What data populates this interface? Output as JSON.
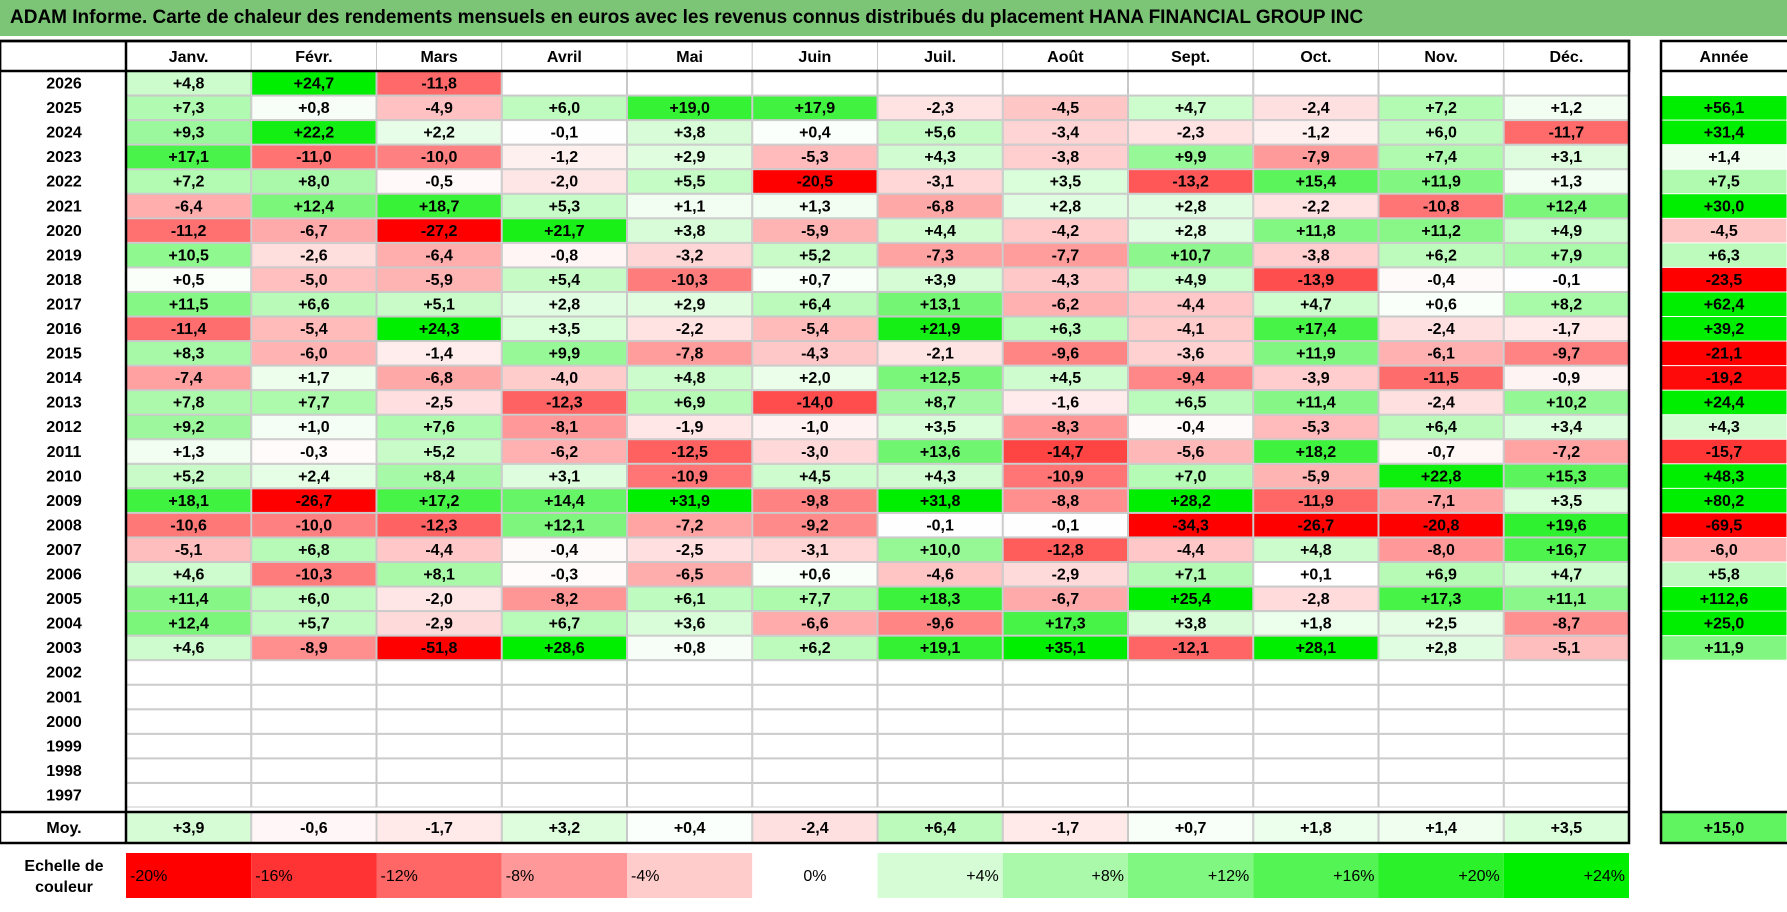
{
  "title": "ADAM Informe. Carte de chaleur des rendements mensuels en euros avec les revenus connus distribués du placement HANA FINANCIAL GROUP INC",
  "colors": {
    "negative_max": "#ff0000",
    "neutral": "#ffffff",
    "positive_max": "#00ee00",
    "title_bar": "#7cc576"
  },
  "chart_data": {
    "type": "heatmap",
    "months": [
      "Janv.",
      "Févr.",
      "Mars",
      "Avril",
      "Mai",
      "Juin",
      "Juil.",
      "Août",
      "Sept.",
      "Oct.",
      "Nov.",
      "Déc."
    ],
    "year_column_label": "Année",
    "rows": [
      {
        "year": "2026",
        "values": [
          "+4,8",
          "+24,7",
          "-11,8",
          null,
          null,
          null,
          null,
          null,
          null,
          null,
          null,
          null
        ],
        "annual": null
      },
      {
        "year": "2025",
        "values": [
          "+7,3",
          "+0,8",
          "-4,9",
          "+6,0",
          "+19,0",
          "+17,9",
          "-2,3",
          "-4,5",
          "+4,7",
          "-2,4",
          "+7,2",
          "+1,2"
        ],
        "annual": "+56,1"
      },
      {
        "year": "2024",
        "values": [
          "+9,3",
          "+22,2",
          "+2,2",
          "-0,1",
          "+3,8",
          "+0,4",
          "+5,6",
          "-3,4",
          "-2,3",
          "-1,2",
          "+6,0",
          "-11,7"
        ],
        "annual": "+31,4"
      },
      {
        "year": "2023",
        "values": [
          "+17,1",
          "-11,0",
          "-10,0",
          "-1,2",
          "+2,9",
          "-5,3",
          "+4,3",
          "-3,8",
          "+9,9",
          "-7,9",
          "+7,4",
          "+3,1"
        ],
        "annual": "+1,4"
      },
      {
        "year": "2022",
        "values": [
          "+7,2",
          "+8,0",
          "-0,5",
          "-2,0",
          "+5,5",
          "-20,5",
          "-3,1",
          "+3,5",
          "-13,2",
          "+15,4",
          "+11,9",
          "+1,3"
        ],
        "annual": "+7,5"
      },
      {
        "year": "2021",
        "values": [
          "-6,4",
          "+12,4",
          "+18,7",
          "+5,3",
          "+1,1",
          "+1,3",
          "-6,8",
          "+2,8",
          "+2,8",
          "-2,2",
          "-10,8",
          "+12,4"
        ],
        "annual": "+30,0"
      },
      {
        "year": "2020",
        "values": [
          "-11,2",
          "-6,7",
          "-27,2",
          "+21,7",
          "+3,8",
          "-5,9",
          "+4,4",
          "-4,2",
          "+2,8",
          "+11,8",
          "+11,2",
          "+4,9"
        ],
        "annual": "-4,5"
      },
      {
        "year": "2019",
        "values": [
          "+10,5",
          "-2,6",
          "-6,4",
          "-0,8",
          "-3,2",
          "+5,2",
          "-7,3",
          "-7,7",
          "+10,7",
          "-3,8",
          "+6,2",
          "+7,9"
        ],
        "annual": "+6,3"
      },
      {
        "year": "2018",
        "values": [
          "+0,5",
          "-5,0",
          "-5,9",
          "+5,4",
          "-10,3",
          "+0,7",
          "+3,9",
          "-4,3",
          "+4,9",
          "-13,9",
          "-0,4",
          "-0,1"
        ],
        "annual": "-23,5"
      },
      {
        "year": "2017",
        "values": [
          "+11,5",
          "+6,6",
          "+5,1",
          "+2,8",
          "+2,9",
          "+6,4",
          "+13,1",
          "-6,2",
          "-4,4",
          "+4,7",
          "+0,6",
          "+8,2"
        ],
        "annual": "+62,4"
      },
      {
        "year": "2016",
        "values": [
          "-11,4",
          "-5,4",
          "+24,3",
          "+3,5",
          "-2,2",
          "-5,4",
          "+21,9",
          "+6,3",
          "-4,1",
          "+17,4",
          "-2,4",
          "-1,7"
        ],
        "annual": "+39,2"
      },
      {
        "year": "2015",
        "values": [
          "+8,3",
          "-6,0",
          "-1,4",
          "+9,9",
          "-7,8",
          "-4,3",
          "-2,1",
          "-9,6",
          "-3,6",
          "+11,9",
          "-6,1",
          "-9,7"
        ],
        "annual": "-21,1"
      },
      {
        "year": "2014",
        "values": [
          "-7,4",
          "+1,7",
          "-6,8",
          "-4,0",
          "+4,8",
          "+2,0",
          "+12,5",
          "+4,5",
          "-9,4",
          "-3,9",
          "-11,5",
          "-0,9"
        ],
        "annual": "-19,2"
      },
      {
        "year": "2013",
        "values": [
          "+7,8",
          "+7,7",
          "-2,5",
          "-12,3",
          "+6,9",
          "-14,0",
          "+8,7",
          "-1,6",
          "+6,5",
          "+11,4",
          "-2,4",
          "+10,2"
        ],
        "annual": "+24,4"
      },
      {
        "year": "2012",
        "values": [
          "+9,2",
          "+1,0",
          "+7,6",
          "-8,1",
          "-1,9",
          "-1,0",
          "+3,5",
          "-8,3",
          "-0,4",
          "-5,3",
          "+6,4",
          "+3,4"
        ],
        "annual": "+4,3"
      },
      {
        "year": "2011",
        "values": [
          "+1,3",
          "-0,3",
          "+5,2",
          "-6,2",
          "-12,5",
          "-3,0",
          "+13,6",
          "-14,7",
          "-5,6",
          "+18,2",
          "-0,7",
          "-7,2"
        ],
        "annual": "-15,7"
      },
      {
        "year": "2010",
        "values": [
          "+5,2",
          "+2,4",
          "+8,4",
          "+3,1",
          "-10,9",
          "+4,5",
          "+4,3",
          "-10,9",
          "+7,0",
          "-5,9",
          "+22,8",
          "+15,3"
        ],
        "annual": "+48,3"
      },
      {
        "year": "2009",
        "values": [
          "+18,1",
          "-26,7",
          "+17,2",
          "+14,4",
          "+31,9",
          "-9,8",
          "+31,8",
          "-8,8",
          "+28,2",
          "-11,9",
          "-7,1",
          "+3,5"
        ],
        "annual": "+80,2"
      },
      {
        "year": "2008",
        "values": [
          "-10,6",
          "-10,0",
          "-12,3",
          "+12,1",
          "-7,2",
          "-9,2",
          "-0,1",
          "-0,1",
          "-34,3",
          "-26,7",
          "-20,8",
          "+19,6"
        ],
        "annual": "-69,5"
      },
      {
        "year": "2007",
        "values": [
          "-5,1",
          "+6,8",
          "-4,4",
          "-0,4",
          "-2,5",
          "-3,1",
          "+10,0",
          "-12,8",
          "-4,4",
          "+4,8",
          "-8,0",
          "+16,7"
        ],
        "annual": "-6,0"
      },
      {
        "year": "2006",
        "values": [
          "+4,6",
          "-10,3",
          "+8,1",
          "-0,3",
          "-6,5",
          "+0,6",
          "-4,6",
          "-2,9",
          "+7,1",
          "+0,1",
          "+6,9",
          "+4,7"
        ],
        "annual": "+5,8"
      },
      {
        "year": "2005",
        "values": [
          "+11,4",
          "+6,0",
          "-2,0",
          "-8,2",
          "+6,1",
          "+7,7",
          "+18,3",
          "-6,7",
          "+25,4",
          "-2,8",
          "+17,3",
          "+11,1"
        ],
        "annual": "+112,6"
      },
      {
        "year": "2004",
        "values": [
          "+12,4",
          "+5,7",
          "-2,9",
          "+6,7",
          "+3,6",
          "-6,6",
          "-9,6",
          "+17,3",
          "+3,8",
          "+1,8",
          "+2,5",
          "-8,7"
        ],
        "annual": "+25,0"
      },
      {
        "year": "2003",
        "values": [
          "+4,6",
          "-8,9",
          "-51,8",
          "+28,6",
          "+0,8",
          "+6,2",
          "+19,1",
          "+35,1",
          "-12,1",
          "+28,1",
          "+2,8",
          "-5,1"
        ],
        "annual": "+11,9"
      },
      {
        "year": "2002",
        "values": [
          null,
          null,
          null,
          null,
          null,
          null,
          null,
          null,
          null,
          null,
          null,
          null
        ],
        "annual": null
      },
      {
        "year": "2001",
        "values": [
          null,
          null,
          null,
          null,
          null,
          null,
          null,
          null,
          null,
          null,
          null,
          null
        ],
        "annual": null
      },
      {
        "year": "2000",
        "values": [
          null,
          null,
          null,
          null,
          null,
          null,
          null,
          null,
          null,
          null,
          null,
          null
        ],
        "annual": null
      },
      {
        "year": "1999",
        "values": [
          null,
          null,
          null,
          null,
          null,
          null,
          null,
          null,
          null,
          null,
          null,
          null
        ],
        "annual": null
      },
      {
        "year": "1998",
        "values": [
          null,
          null,
          null,
          null,
          null,
          null,
          null,
          null,
          null,
          null,
          null,
          null
        ],
        "annual": null
      },
      {
        "year": "1997",
        "values": [
          null,
          null,
          null,
          null,
          null,
          null,
          null,
          null,
          null,
          null,
          null,
          null
        ],
        "annual": null
      }
    ],
    "average": {
      "label": "Moy.",
      "values": [
        "+3,9",
        "-0,6",
        "-1,7",
        "+3,2",
        "+0,4",
        "-2,4",
        "+6,4",
        "-1,7",
        "+0,7",
        "+1,8",
        "+1,4",
        "+3,5"
      ],
      "annual": "+15,0"
    },
    "scale": {
      "label_line1": "Echelle de",
      "label_line2": "couleur",
      "steps": [
        {
          "label": "-20%",
          "value": -20
        },
        {
          "label": "-16%",
          "value": -16
        },
        {
          "label": "-12%",
          "value": -12
        },
        {
          "label": "-8%",
          "value": -8
        },
        {
          "label": "-4%",
          "value": -4
        },
        {
          "label": "0%",
          "value": 0
        },
        {
          "label": "+4%",
          "value": 4
        },
        {
          "label": "+8%",
          "value": 8
        },
        {
          "label": "+12%",
          "value": 12
        },
        {
          "label": "+16%",
          "value": 16
        },
        {
          "label": "+20%",
          "value": 20
        },
        {
          "label": "+24%",
          "value": 24
        }
      ]
    },
    "color_range": {
      "negative_full_at": -20,
      "positive_full_at": 24
    }
  }
}
